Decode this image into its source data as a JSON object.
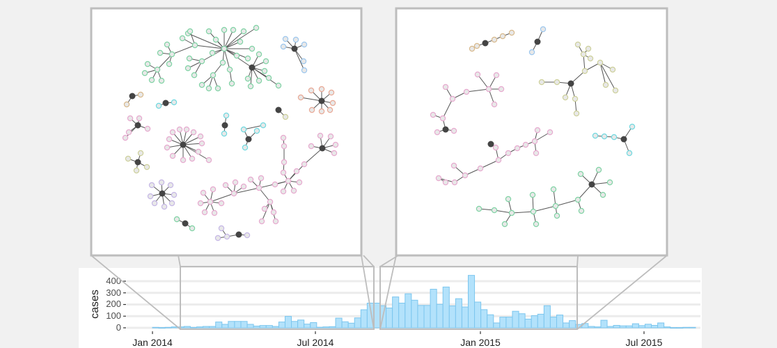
{
  "chart_data": {
    "type": "bar",
    "ylabel": "cases",
    "xlabel": "",
    "ylim": [
      0,
      450
    ],
    "yticks": [
      "0",
      "100",
      "200",
      "300",
      "400"
    ],
    "xticks": [
      "Jan 2014",
      "Jul 2014",
      "Jan 2015",
      "Jul 2015"
    ],
    "bin": "week",
    "x_start": "2014-01-01",
    "grid": true,
    "values": [
      4,
      2,
      4,
      8,
      8,
      12,
      4,
      8,
      12,
      12,
      50,
      30,
      55,
      55,
      55,
      30,
      15,
      20,
      20,
      12,
      50,
      98,
      55,
      67,
      32,
      45,
      5,
      8,
      10,
      83,
      52,
      40,
      85,
      155,
      212,
      212,
      190,
      170,
      265,
      212,
      292,
      237,
      192,
      192,
      331,
      202,
      350,
      188,
      250,
      179,
      450,
      221,
      156,
      112,
      42,
      92,
      92,
      142,
      121,
      75,
      104,
      117,
      190,
      92,
      110,
      42,
      62,
      29,
      37,
      12,
      8,
      65,
      12,
      21,
      17,
      17,
      35,
      19,
      31,
      21,
      42,
      8,
      2,
      2,
      4,
      4
    ],
    "zoom_windows": [
      {
        "from": "2014-02-01",
        "to": "2014-08-31",
        "panel": "left"
      },
      {
        "from": "2014-09-15",
        "to": "2015-04-15",
        "panel": "right"
      }
    ]
  },
  "colors": {
    "bar_fill": "#b3e2fb",
    "bar_stroke": "#7cc6ee",
    "hub": "#444444",
    "node_fill": "#e8e8e8",
    "panel_border": "#bdbdbd",
    "clusters": [
      "#7fd3a4",
      "#9cc7ee",
      "#e9a894",
      "#e7a9cf",
      "#c5b6e6",
      "#cdd09a",
      "#6fd9e0",
      "#d8b98c",
      "#e5a9bd"
    ]
  }
}
